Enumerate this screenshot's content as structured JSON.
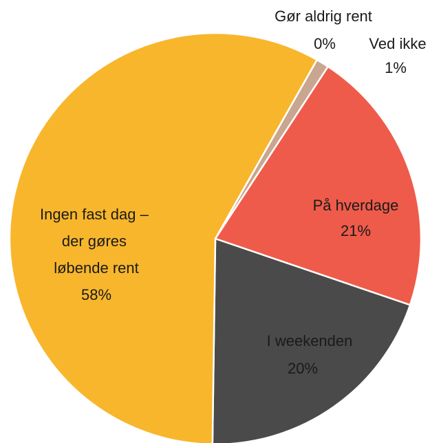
{
  "chart_data": {
    "type": "pie",
    "categories": [
      "Gør aldrig rent",
      "Ved ikke",
      "På hverdage",
      "I weekenden",
      "Ingen fast dag – der gøres løbende rent"
    ],
    "values": [
      0,
      1,
      21,
      20,
      58
    ],
    "value_labels": [
      "0%",
      "1%",
      "21%",
      "20%",
      "58%"
    ],
    "colors": [
      "#0d2a3f",
      "#c8a690",
      "#ef5b4a",
      "#4a4a4a",
      "#f8b62c"
    ]
  }
}
